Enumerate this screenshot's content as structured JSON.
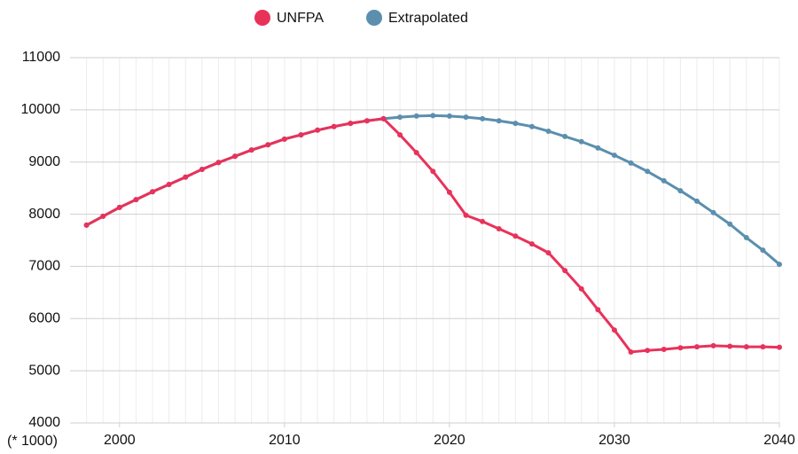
{
  "chart_data": {
    "type": "line",
    "x": [
      1998,
      1999,
      2000,
      2001,
      2002,
      2003,
      2004,
      2005,
      2006,
      2007,
      2008,
      2009,
      2010,
      2011,
      2012,
      2013,
      2014,
      2015,
      2016,
      2017,
      2018,
      2019,
      2020,
      2021,
      2022,
      2023,
      2024,
      2025,
      2026,
      2027,
      2028,
      2029,
      2030,
      2031,
      2032,
      2033,
      2034,
      2035,
      2036,
      2037,
      2038,
      2039,
      2040
    ],
    "series": [
      {
        "name": "UNFPA",
        "color": "#e8325a",
        "values": [
          7790,
          7960,
          8130,
          8280,
          8430,
          8570,
          8710,
          8860,
          8990,
          9110,
          9230,
          9330,
          9440,
          9520,
          9610,
          9680,
          9740,
          9790,
          9830,
          9520,
          9180,
          8820,
          8420,
          7980,
          7860,
          7720,
          7580,
          7430,
          7260,
          6920,
          6570,
          6170,
          5780,
          5360,
          5390,
          5410,
          5440,
          5460,
          5480,
          5470,
          5460,
          5460,
          5450
        ]
      },
      {
        "name": "Extrapolated",
        "color": "#5b8fad",
        "values": [
          7790,
          7960,
          8130,
          8280,
          8430,
          8570,
          8710,
          8860,
          8990,
          9110,
          9230,
          9330,
          9440,
          9520,
          9610,
          9680,
          9740,
          9790,
          9830,
          9860,
          9880,
          9890,
          9880,
          9860,
          9830,
          9790,
          9740,
          9680,
          9590,
          9490,
          9390,
          9270,
          9130,
          8980,
          8820,
          8640,
          8450,
          8250,
          8030,
          7810,
          7550,
          7310,
          7040
        ]
      }
    ],
    "xlim": [
      1997,
      2040
    ],
    "xticks": [
      2000,
      2010,
      2020,
      2030,
      2040
    ],
    "ylim": [
      4000,
      11000
    ],
    "yticks": [
      4000,
      5000,
      6000,
      7000,
      8000,
      9000,
      10000,
      11000
    ],
    "grid": true,
    "legend": "top",
    "unit_label": "(* 1000)"
  }
}
